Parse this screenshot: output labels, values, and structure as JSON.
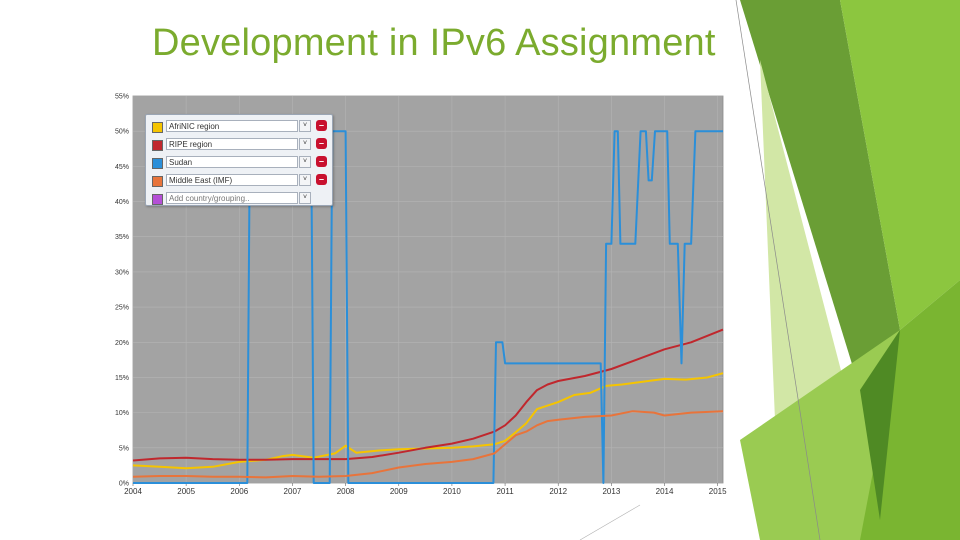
{
  "slide": {
    "title": "Development in IPv6 Assignment"
  },
  "colors": {
    "title_green": "#7bab2e",
    "plot_background": "#a3a3a3",
    "deco_green_dark": "#5f9a2a",
    "deco_green": "#8cc63f",
    "deco_green_light": "#c8e29a"
  },
  "legend": {
    "items": [
      {
        "label": "AfriNIC region",
        "color": "#f5c400",
        "has_remove": true
      },
      {
        "label": "RIPE region",
        "color": "#c0272d",
        "has_remove": true
      },
      {
        "label": "Sudan",
        "color": "#2b8fd9",
        "has_remove": true
      },
      {
        "label": "Middle East (IMF)",
        "color": "#e8743b",
        "has_remove": true
      }
    ],
    "add_placeholder": "Add country/grouping..",
    "add_color": "#b44fd6",
    "drop_icon": "chevron-down-icon",
    "remove_icon": "minus-icon"
  },
  "chart_data": {
    "type": "line",
    "xlabel": "",
    "ylabel": "",
    "xlim": [
      2004,
      2015.1
    ],
    "ylim": [
      0,
      55
    ],
    "xticks": [
      2004,
      2005,
      2006,
      2007,
      2008,
      2009,
      2010,
      2011,
      2012,
      2013,
      2014,
      2015
    ],
    "yticks": [
      0,
      5,
      10,
      15,
      20,
      25,
      30,
      35,
      40,
      45,
      50,
      55
    ],
    "yticklabels": [
      "0%",
      "5%",
      "10%",
      "15%",
      "20%",
      "25%",
      "30%",
      "35%",
      "40%",
      "45%",
      "50%",
      "55%"
    ],
    "grid": true,
    "legend_position": "top-left",
    "series": [
      {
        "name": "AfriNIC region",
        "color": "#f5c400",
        "points": [
          [
            2004,
            2.5
          ],
          [
            2004.5,
            2.3
          ],
          [
            2005,
            2.1
          ],
          [
            2005.5,
            2.3
          ],
          [
            2006,
            3.0
          ],
          [
            2006.5,
            3.3
          ],
          [
            2006.8,
            3.8
          ],
          [
            2007,
            4.0
          ],
          [
            2007.4,
            3.6
          ],
          [
            2007.8,
            4.2
          ],
          [
            2008,
            5.3
          ],
          [
            2008.2,
            4.3
          ],
          [
            2008.6,
            4.6
          ],
          [
            2009,
            4.8
          ],
          [
            2009.5,
            4.9
          ],
          [
            2010,
            5.0
          ],
          [
            2010.4,
            5.2
          ],
          [
            2010.8,
            5.5
          ],
          [
            2011,
            6.0
          ],
          [
            2011.2,
            7.2
          ],
          [
            2011.4,
            8.5
          ],
          [
            2011.6,
            10.5
          ],
          [
            2011.8,
            11.0
          ],
          [
            2012,
            11.5
          ],
          [
            2012.3,
            12.5
          ],
          [
            2012.6,
            12.8
          ],
          [
            2012.9,
            13.8
          ],
          [
            2013.2,
            14.0
          ],
          [
            2013.5,
            14.3
          ],
          [
            2013.8,
            14.6
          ],
          [
            2014,
            14.8
          ],
          [
            2014.4,
            14.7
          ],
          [
            2014.8,
            15.0
          ],
          [
            2015.1,
            15.6
          ]
        ]
      },
      {
        "name": "RIPE region",
        "color": "#c0272d",
        "points": [
          [
            2004,
            3.2
          ],
          [
            2004.5,
            3.5
          ],
          [
            2005,
            3.6
          ],
          [
            2005.5,
            3.4
          ],
          [
            2006,
            3.3
          ],
          [
            2006.5,
            3.3
          ],
          [
            2007,
            3.4
          ],
          [
            2007.5,
            3.4
          ],
          [
            2008,
            3.4
          ],
          [
            2008.5,
            3.7
          ],
          [
            2009,
            4.3
          ],
          [
            2009.5,
            5.0
          ],
          [
            2010,
            5.6
          ],
          [
            2010.4,
            6.3
          ],
          [
            2010.8,
            7.3
          ],
          [
            2011,
            8.2
          ],
          [
            2011.2,
            9.6
          ],
          [
            2011.4,
            11.5
          ],
          [
            2011.6,
            13.2
          ],
          [
            2011.8,
            14.0
          ],
          [
            2012,
            14.5
          ],
          [
            2012.5,
            15.2
          ],
          [
            2013,
            16.2
          ],
          [
            2013.5,
            17.6
          ],
          [
            2014,
            19.0
          ],
          [
            2014.5,
            20.0
          ],
          [
            2015.1,
            21.8
          ]
        ]
      },
      {
        "name": "Sudan",
        "color": "#2b8fd9",
        "points": [
          [
            2004,
            0
          ],
          [
            2006.15,
            0
          ],
          [
            2006.2,
            50
          ],
          [
            2007.35,
            50
          ],
          [
            2007.4,
            0
          ],
          [
            2007.7,
            0
          ],
          [
            2007.75,
            50
          ],
          [
            2008.0,
            50
          ],
          [
            2008.05,
            0
          ],
          [
            2010.78,
            0
          ],
          [
            2010.83,
            20
          ],
          [
            2010.95,
            20
          ],
          [
            2011.0,
            17
          ],
          [
            2012.8,
            17
          ],
          [
            2012.85,
            0
          ],
          [
            2012.9,
            34
          ],
          [
            2013.0,
            34
          ],
          [
            2013.06,
            50
          ],
          [
            2013.12,
            50
          ],
          [
            2013.17,
            34
          ],
          [
            2013.45,
            34
          ],
          [
            2013.55,
            50
          ],
          [
            2013.65,
            50
          ],
          [
            2013.7,
            43
          ],
          [
            2013.76,
            43
          ],
          [
            2013.82,
            50
          ],
          [
            2014.05,
            50
          ],
          [
            2014.1,
            34
          ],
          [
            2014.25,
            34
          ],
          [
            2014.32,
            17
          ],
          [
            2014.38,
            34
          ],
          [
            2014.5,
            34
          ],
          [
            2014.58,
            50
          ],
          [
            2015.1,
            50
          ]
        ]
      },
      {
        "name": "Middle East (IMF)",
        "color": "#e8743b",
        "points": [
          [
            2004,
            0.9
          ],
          [
            2004.5,
            1.0
          ],
          [
            2005,
            1.0
          ],
          [
            2005.5,
            0.9
          ],
          [
            2006,
            0.9
          ],
          [
            2006.5,
            0.8
          ],
          [
            2007,
            1.0
          ],
          [
            2007.5,
            0.9
          ],
          [
            2008,
            1.0
          ],
          [
            2008.5,
            1.4
          ],
          [
            2009,
            2.2
          ],
          [
            2009.5,
            2.7
          ],
          [
            2010,
            3.0
          ],
          [
            2010.4,
            3.4
          ],
          [
            2010.8,
            4.2
          ],
          [
            2011,
            5.5
          ],
          [
            2011.2,
            6.8
          ],
          [
            2011.4,
            7.3
          ],
          [
            2011.6,
            8.2
          ],
          [
            2011.8,
            8.8
          ],
          [
            2012,
            9.0
          ],
          [
            2012.5,
            9.4
          ],
          [
            2013,
            9.6
          ],
          [
            2013.4,
            10.2
          ],
          [
            2013.8,
            10.0
          ],
          [
            2014,
            9.6
          ],
          [
            2014.5,
            10.0
          ],
          [
            2015.1,
            10.2
          ]
        ]
      }
    ]
  }
}
